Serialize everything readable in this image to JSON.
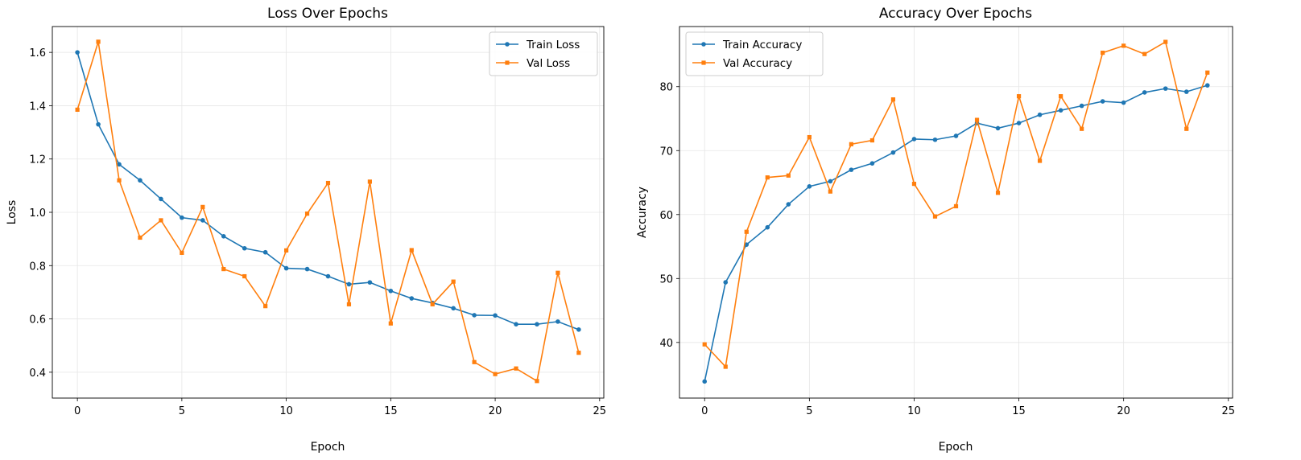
{
  "chart_data": [
    {
      "type": "line",
      "title": "Loss Over Epochs",
      "xlabel": "Epoch",
      "ylabel": "Loss",
      "xlim": [
        -1.2,
        25.2
      ],
      "ylim": [
        0.303,
        1.697
      ],
      "xticks": [
        0,
        5,
        10,
        15,
        20,
        25
      ],
      "yticks": [
        0.4,
        0.6,
        0.8,
        1.0,
        1.2,
        1.4,
        1.6
      ],
      "ytick_labels": [
        "0.4",
        "0.6",
        "0.8",
        "1.0",
        "1.2",
        "1.4",
        "1.6"
      ],
      "grid": true,
      "legend_position": "top-right",
      "x": [
        0,
        1,
        2,
        3,
        4,
        5,
        6,
        7,
        8,
        9,
        10,
        11,
        12,
        13,
        14,
        15,
        16,
        17,
        18,
        19,
        20,
        21,
        22,
        23,
        24
      ],
      "series": [
        {
          "name": "Train Loss",
          "color": "#1f77b4",
          "marker": "circle",
          "values": [
            1.6,
            1.33,
            1.18,
            1.12,
            1.05,
            0.98,
            0.97,
            0.91,
            0.865,
            0.85,
            0.79,
            0.787,
            0.76,
            0.73,
            0.737,
            0.705,
            0.677,
            0.66,
            0.64,
            0.614,
            0.613,
            0.58,
            0.58,
            0.59,
            0.56
          ]
        },
        {
          "name": "Val Loss",
          "color": "#ff7f0e",
          "marker": "square",
          "values": [
            1.385,
            1.64,
            1.12,
            0.905,
            0.97,
            0.848,
            1.02,
            0.787,
            0.76,
            0.648,
            0.857,
            0.995,
            1.11,
            0.655,
            1.115,
            0.583,
            0.858,
            0.655,
            0.74,
            0.438,
            0.393,
            0.414,
            0.367,
            0.773,
            0.473
          ]
        }
      ]
    },
    {
      "type": "line",
      "title": "Accuracy Over Epochs",
      "xlabel": "Epoch",
      "ylabel": "Accuracy",
      "xlim": [
        -1.2,
        25.2
      ],
      "ylim": [
        31.3,
        89.4
      ],
      "xticks": [
        0,
        5,
        10,
        15,
        20,
        25
      ],
      "yticks": [
        40,
        50,
        60,
        70,
        80
      ],
      "ytick_labels": [
        "40",
        "50",
        "60",
        "70",
        "80"
      ],
      "grid": true,
      "legend_position": "top-left",
      "x": [
        0,
        1,
        2,
        3,
        4,
        5,
        6,
        7,
        8,
        9,
        10,
        11,
        12,
        13,
        14,
        15,
        16,
        17,
        18,
        19,
        20,
        21,
        22,
        23,
        24
      ],
      "series": [
        {
          "name": "Train Accuracy",
          "color": "#1f77b4",
          "marker": "circle",
          "values": [
            33.9,
            49.4,
            55.3,
            58.0,
            61.6,
            64.4,
            65.2,
            67.0,
            68.0,
            69.7,
            71.8,
            71.7,
            72.3,
            74.3,
            73.5,
            74.3,
            75.6,
            76.3,
            77.0,
            77.7,
            77.5,
            79.1,
            79.7,
            79.2,
            80.2
          ]
        },
        {
          "name": "Val Accuracy",
          "color": "#ff7f0e",
          "marker": "square",
          "values": [
            39.7,
            36.2,
            57.3,
            65.8,
            66.1,
            72.1,
            63.6,
            71.0,
            71.6,
            78.0,
            64.8,
            59.7,
            61.3,
            74.8,
            63.4,
            78.5,
            68.4,
            78.5,
            73.4,
            85.3,
            86.4,
            85.1,
            87.0,
            73.4,
            82.2
          ]
        }
      ]
    }
  ]
}
